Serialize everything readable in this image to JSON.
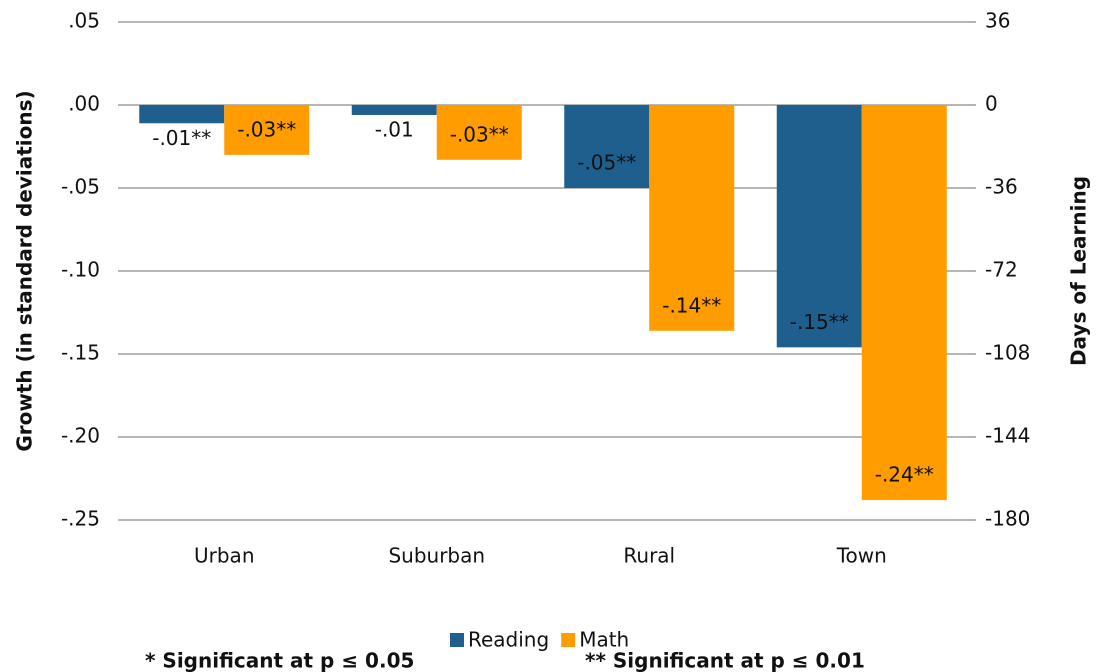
{
  "chart_data": {
    "type": "bar",
    "y_label": "Growth (in standard deviations)",
    "y2_label": "Days of Learning",
    "categories": [
      "Urban",
      "Suburban",
      "Rural",
      "Town"
    ],
    "series": [
      {
        "name": "Reading",
        "color": "#1f5f8e",
        "values": [
          -0.011,
          -0.006,
          -0.05,
          -0.146
        ],
        "value_labels": [
          "-.01**",
          "-.01",
          "-.05**",
          "-.15**"
        ]
      },
      {
        "name": "Math",
        "color": "#ff9c00",
        "values": [
          -0.03,
          -0.033,
          -0.136,
          -0.238
        ],
        "value_labels": [
          "-.03**",
          "-.03**",
          "-.14**",
          "-.24**"
        ]
      }
    ],
    "ylim": [
      -0.25,
      0.05
    ],
    "yticks": [
      {
        "value": 0.05,
        "label": ".05"
      },
      {
        "value": 0,
        "label": ".00"
      },
      {
        "value": -0.05,
        "label": "-.05"
      },
      {
        "value": -0.1,
        "label": "-.10"
      },
      {
        "value": -0.15,
        "label": "-.15"
      },
      {
        "value": -0.2,
        "label": "-.20"
      },
      {
        "value": -0.25,
        "label": "-.25"
      }
    ],
    "y2lim": [
      -180,
      36
    ],
    "y2ticks": [
      36,
      0,
      -36,
      -72,
      -108,
      -144,
      -180
    ],
    "grid": true,
    "legend": "bottom",
    "notes": [
      "* Significant at p ≤ 0.05",
      "** Significant at p ≤ 0.01"
    ]
  }
}
